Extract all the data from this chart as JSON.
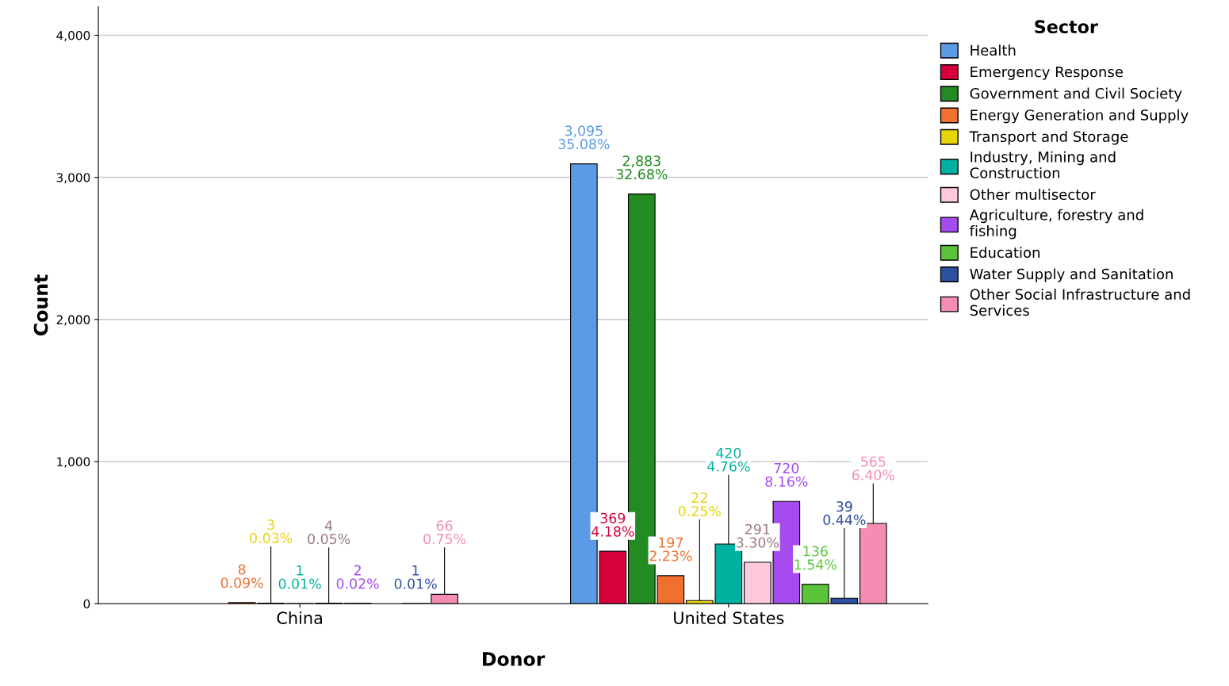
{
  "chart_data": {
    "type": "bar",
    "xlabel": "Donor",
    "ylabel": "Count",
    "legend_title": "Sector",
    "legend": "right",
    "grid": "y",
    "categories": [
      "China",
      "United States"
    ],
    "ylim": [
      0,
      4200
    ],
    "yticks": [
      {
        "value": 0,
        "label": "0"
      },
      {
        "value": 1000,
        "label": "1,000"
      },
      {
        "value": 2000,
        "label": "2,000"
      },
      {
        "value": 3000,
        "label": "3,000"
      },
      {
        "value": 4000,
        "label": "4,000"
      }
    ],
    "series": [
      {
        "name": "Health",
        "color": "#5b9be6",
        "values": [
          null,
          3095
        ],
        "value_labels": [
          null,
          "3,095\n35.08%"
        ]
      },
      {
        "name": "Emergency Response",
        "color": "#d7003a",
        "values": [
          null,
          369
        ],
        "value_labels": [
          null,
          "369\n4.18%"
        ]
      },
      {
        "name": "Government and Civil Society",
        "color": "#228b22",
        "values": [
          null,
          2883
        ],
        "value_labels": [
          null,
          "2,883\n32.68%"
        ]
      },
      {
        "name": "Energy Generation and Supply",
        "color": "#f07030",
        "values": [
          8,
          197
        ],
        "value_labels": [
          "8\n0.09%",
          "197\n2.23%"
        ]
      },
      {
        "name": "Transport and Storage",
        "color": "#e8d40a",
        "values": [
          3,
          22
        ],
        "value_labels": [
          "3\n0.03%",
          "22\n0.25%"
        ]
      },
      {
        "name": "Industry, Mining and Construction",
        "color": "#00b0a0",
        "values": [
          1,
          420
        ],
        "value_labels": [
          "1\n0.01%",
          "420\n4.76%"
        ]
      },
      {
        "name": "Other multisector",
        "color": "#ffc8dc",
        "values": [
          4,
          291
        ],
        "value_labels": [
          "4\n0.05%",
          "291\n3.30%"
        ]
      },
      {
        "name": "Agriculture, forestry and fishing",
        "color": "#a64bf0",
        "values": [
          2,
          720
        ],
        "value_labels": [
          "2\n0.02%",
          "720\n8.16%"
        ]
      },
      {
        "name": "Education",
        "color": "#5cc43a",
        "values": [
          null,
          136
        ],
        "value_labels": [
          null,
          "136\n1.54%"
        ]
      },
      {
        "name": "Water Supply and Sanitation",
        "color": "#2f4fa0",
        "values": [
          1,
          39
        ],
        "value_labels": [
          "1\n0.01%",
          "39\n0.44%"
        ]
      },
      {
        "name": "Other Social Infrastructure and Services",
        "color": "#f58cb4",
        "values": [
          66,
          565
        ],
        "value_labels": [
          "66\n0.75%",
          "565\n6.40%"
        ]
      }
    ]
  }
}
